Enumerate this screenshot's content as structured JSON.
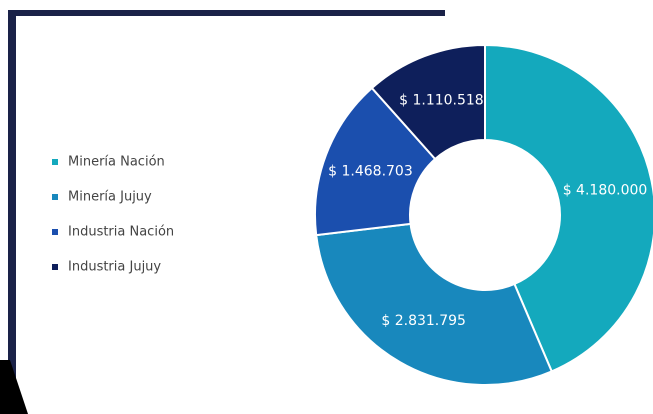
{
  "chart_data": {
    "type": "donut",
    "categories": [
      "Minería Nación",
      "Minería Jujuy",
      "Industria Nación",
      "Industria Jujuy"
    ],
    "values": [
      4180000,
      2831795,
      1468703,
      1110518
    ],
    "value_labels": [
      "$ 4.180.000",
      "$ 2.831.795",
      "$ 1.468.703",
      "$ 1.110.518"
    ],
    "colors": [
      "#14a9bd",
      "#1888bd",
      "#1b4fae",
      "#0e1f5b"
    ],
    "legend": "left"
  }
}
